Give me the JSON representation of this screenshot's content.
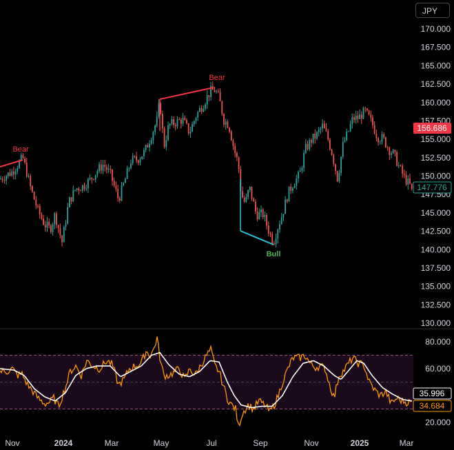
{
  "symbol": "JPY",
  "colors": {
    "up": "#26a69a",
    "down": "#ef5350",
    "bear": "#f23645",
    "bull_line": "#22c3d6",
    "bull_text": "#4caf50",
    "rsi": "#ff9800",
    "rsi_ma": "#ffffff",
    "band_fill": "#1a0a1c",
    "band_line": "#a24b7f"
  },
  "chart_data": [
    {
      "type": "line",
      "role": "price",
      "y_ticks": [
        "170.000",
        "167.500",
        "165.000",
        "162.500",
        "160.000",
        "157.500",
        "155.000",
        "152.500",
        "150.000",
        "147.500",
        "145.000",
        "142.500",
        "140.000",
        "137.500",
        "135.000",
        "132.500",
        "130.000"
      ],
      "ylim": [
        130,
        171
      ],
      "price_label_red": "156.686",
      "price_label_green": "147.776",
      "x_labels": [
        {
          "text": "Nov",
          "bold": false
        },
        {
          "text": "2024",
          "bold": true
        },
        {
          "text": "Mar",
          "bold": false
        },
        {
          "text": "May",
          "bold": false
        },
        {
          "text": "Jul",
          "bold": false
        },
        {
          "text": "Sep",
          "bold": false
        },
        {
          "text": "Nov",
          "bold": false
        },
        {
          "text": "2025",
          "bold": true
        },
        {
          "text": "Mar",
          "bold": false
        }
      ],
      "anchors": [
        [
          0,
          149.6
        ],
        [
          18,
          150.6
        ],
        [
          33,
          152.5
        ],
        [
          38,
          150.8
        ],
        [
          45,
          148.2
        ],
        [
          55,
          145.3
        ],
        [
          65,
          143.4
        ],
        [
          73,
          142.8
        ],
        [
          80,
          144.8
        ],
        [
          90,
          141.0
        ],
        [
          100,
          146.5
        ],
        [
          110,
          148.3
        ],
        [
          120,
          148.6
        ],
        [
          130,
          149.4
        ],
        [
          140,
          150.6
        ],
        [
          150,
          151.6
        ],
        [
          160,
          150.3
        ],
        [
          172,
          146.8
        ],
        [
          182,
          149.6
        ],
        [
          190,
          152.1
        ],
        [
          200,
          152.3
        ],
        [
          210,
          153.3
        ],
        [
          220,
          155.6
        ],
        [
          228,
          157.6
        ],
        [
          232,
          160.3
        ],
        [
          238,
          154.0
        ],
        [
          245,
          156.9
        ],
        [
          255,
          157.3
        ],
        [
          265,
          157.7
        ],
        [
          275,
          155.9
        ],
        [
          285,
          158.3
        ],
        [
          295,
          159.8
        ],
        [
          305,
          161.5
        ],
        [
          312,
          161.7
        ],
        [
          318,
          160.6
        ],
        [
          325,
          157.6
        ],
        [
          332,
          157.0
        ],
        [
          340,
          153.6
        ],
        [
          346,
          151.6
        ],
        [
          350,
          147.6
        ],
        [
          356,
          146.2
        ],
        [
          362,
          148.5
        ],
        [
          372,
          144.8
        ],
        [
          382,
          144.8
        ],
        [
          390,
          142.6
        ],
        [
          397,
          141.0
        ],
        [
          403,
          143.0
        ],
        [
          410,
          144.9
        ],
        [
          418,
          147.6
        ],
        [
          425,
          148.9
        ],
        [
          435,
          150.2
        ],
        [
          443,
          153.6
        ],
        [
          452,
          154.9
        ],
        [
          460,
          155.6
        ],
        [
          468,
          156.8
        ],
        [
          475,
          155.4
        ],
        [
          482,
          153.1
        ],
        [
          490,
          149.6
        ],
        [
          498,
          154.3
        ],
        [
          505,
          155.9
        ],
        [
          512,
          157.8
        ],
        [
          520,
          157.9
        ],
        [
          530,
          158.8
        ],
        [
          540,
          157.2
        ],
        [
          548,
          155.3
        ],
        [
          556,
          155.1
        ],
        [
          565,
          153.6
        ],
        [
          572,
          152.9
        ],
        [
          580,
          151.1
        ],
        [
          588,
          149.6
        ],
        [
          596,
          148.6
        ],
        [
          598,
          147.8
        ]
      ],
      "bear_label": "Bear",
      "bull_label": "Bull"
    },
    {
      "type": "line",
      "role": "rsi",
      "y_ticks": [
        "80.000",
        "60.000",
        "40.000",
        "20.000"
      ],
      "ylim": [
        15,
        90
      ],
      "band": [
        30,
        70
      ],
      "midline": 50,
      "rsi_label_white": "35.996",
      "rsi_label_orange": "34.684",
      "rsi_anchors": [
        [
          0,
          58
        ],
        [
          10,
          58
        ],
        [
          18,
          60
        ],
        [
          25,
          55
        ],
        [
          32,
          56
        ],
        [
          40,
          48
        ],
        [
          48,
          43
        ],
        [
          55,
          38
        ],
        [
          65,
          34
        ],
        [
          72,
          35
        ],
        [
          78,
          38
        ],
        [
          85,
          32
        ],
        [
          95,
          46
        ],
        [
          102,
          58
        ],
        [
          110,
          62
        ],
        [
          118,
          55
        ],
        [
          126,
          66
        ],
        [
          135,
          62
        ],
        [
          145,
          60
        ],
        [
          155,
          66
        ],
        [
          163,
          63
        ],
        [
          172,
          48
        ],
        [
          180,
          52
        ],
        [
          188,
          60
        ],
        [
          196,
          62
        ],
        [
          205,
          64
        ],
        [
          212,
          73
        ],
        [
          218,
          70
        ],
        [
          223,
          74
        ],
        [
          228,
          83
        ],
        [
          233,
          65
        ],
        [
          238,
          55
        ],
        [
          245,
          55
        ],
        [
          252,
          57
        ],
        [
          260,
          60
        ],
        [
          268,
          52
        ],
        [
          276,
          60
        ],
        [
          283,
          55
        ],
        [
          292,
          63
        ],
        [
          300,
          70
        ],
        [
          306,
          74
        ],
        [
          312,
          62
        ],
        [
          318,
          58
        ],
        [
          325,
          46
        ],
        [
          330,
          38
        ],
        [
          336,
          33
        ],
        [
          342,
          30
        ],
        [
          346,
          17
        ],
        [
          352,
          27
        ],
        [
          360,
          33
        ],
        [
          368,
          30
        ],
        [
          376,
          36
        ],
        [
          384,
          33
        ],
        [
          392,
          28
        ],
        [
          398,
          33
        ],
        [
          404,
          40
        ],
        [
          410,
          50
        ],
        [
          418,
          60
        ],
        [
          425,
          68
        ],
        [
          435,
          68
        ],
        [
          443,
          70
        ],
        [
          450,
          64
        ],
        [
          457,
          61
        ],
        [
          465,
          62
        ],
        [
          472,
          60
        ],
        [
          478,
          49
        ],
        [
          485,
          38
        ],
        [
          492,
          55
        ],
        [
          498,
          58
        ],
        [
          505,
          63
        ],
        [
          512,
          68
        ],
        [
          520,
          64
        ],
        [
          528,
          63
        ],
        [
          536,
          50
        ],
        [
          544,
          44
        ],
        [
          552,
          40
        ],
        [
          560,
          43
        ],
        [
          568,
          34
        ],
        [
          576,
          38
        ],
        [
          584,
          36
        ],
        [
          592,
          35
        ],
        [
          598,
          35
        ]
      ],
      "ma_anchors": [
        [
          0,
          60
        ],
        [
          20,
          59
        ],
        [
          35,
          55
        ],
        [
          50,
          45
        ],
        [
          65,
          39
        ],
        [
          80,
          36
        ],
        [
          95,
          42
        ],
        [
          110,
          55
        ],
        [
          125,
          60
        ],
        [
          140,
          62
        ],
        [
          160,
          62
        ],
        [
          175,
          54
        ],
        [
          190,
          58
        ],
        [
          205,
          62
        ],
        [
          220,
          70
        ],
        [
          232,
          72
        ],
        [
          245,
          63
        ],
        [
          260,
          56
        ],
        [
          275,
          54
        ],
        [
          290,
          58
        ],
        [
          305,
          66
        ],
        [
          318,
          65
        ],
        [
          330,
          50
        ],
        [
          340,
          40
        ],
        [
          350,
          33
        ],
        [
          365,
          31
        ],
        [
          380,
          32
        ],
        [
          395,
          32
        ],
        [
          410,
          40
        ],
        [
          425,
          54
        ],
        [
          440,
          64
        ],
        [
          455,
          66
        ],
        [
          470,
          62
        ],
        [
          485,
          55
        ],
        [
          495,
          52
        ],
        [
          505,
          58
        ],
        [
          518,
          66
        ],
        [
          528,
          64
        ],
        [
          540,
          55
        ],
        [
          555,
          46
        ],
        [
          570,
          41
        ],
        [
          585,
          37
        ],
        [
          598,
          36
        ]
      ]
    }
  ]
}
